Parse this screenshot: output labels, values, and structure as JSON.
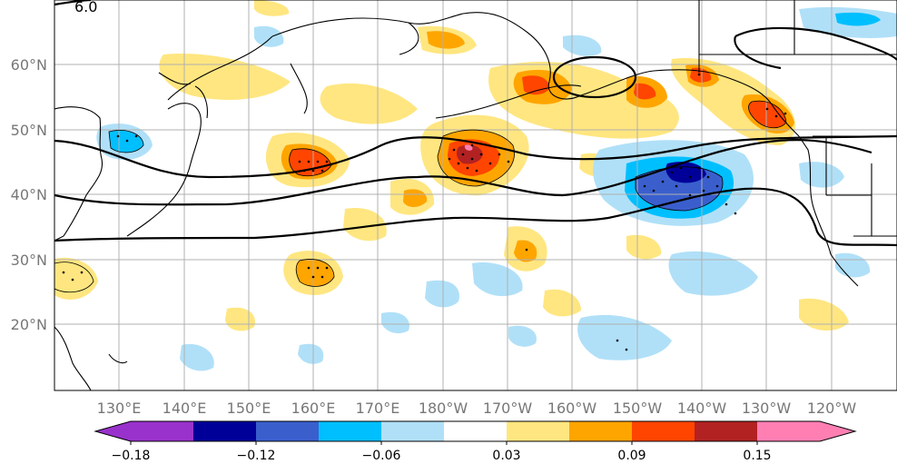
{
  "map": {
    "lat_ticks": [
      "60°N",
      "50°N",
      "40°N",
      "30°N",
      "20°N"
    ],
    "lon_ticks": [
      "130°E",
      "140°E",
      "150°E",
      "160°E",
      "170°E",
      "180°W",
      "170°W",
      "160°W",
      "150°W",
      "140°W",
      "130°W",
      "120°W"
    ],
    "contour_label": "6.0"
  },
  "colorbar": {
    "colors": [
      "#9932cc",
      "#000099",
      "#3a5fcd",
      "#00bfff",
      "#b0e0f8",
      "#ffffff",
      "#ffe680",
      "#ffa500",
      "#ff4500",
      "#b22222",
      "#ff7fb3"
    ],
    "tick_labels": [
      "−0.18",
      "−0.12",
      "−0.06",
      "0.03",
      "0.09",
      "0.15"
    ]
  }
}
